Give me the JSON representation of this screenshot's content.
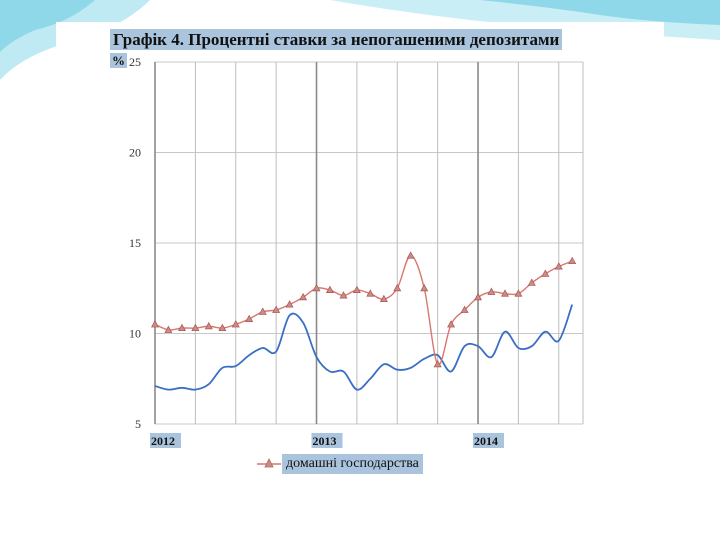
{
  "slide": {
    "accent": "#7fd3e8"
  },
  "chart_data": {
    "type": "line",
    "title": "Графік 4. Процентні ставки за непогашеними депозитами",
    "ylabel": "%",
    "ylim": [
      5,
      25
    ],
    "yticks": [
      "25",
      "20",
      "15",
      "10",
      "5"
    ],
    "xlim": [
      2012.0,
      2014.65
    ],
    "xticks": [
      {
        "value": 2012,
        "label": "2012"
      },
      {
        "value": 2013,
        "label": "2013"
      },
      {
        "value": 2014,
        "label": "2014"
      }
    ],
    "grid": true,
    "legend": "bottom",
    "series": [
      {
        "name": "домашні господарства",
        "color": "#d9776e",
        "marker": "triangle",
        "points": [
          [
            2012.0,
            10.5
          ],
          [
            2012.083,
            10.2
          ],
          [
            2012.167,
            10.3
          ],
          [
            2012.25,
            10.3
          ],
          [
            2012.333,
            10.4
          ],
          [
            2012.417,
            10.3
          ],
          [
            2012.5,
            10.5
          ],
          [
            2012.583,
            10.8
          ],
          [
            2012.667,
            11.2
          ],
          [
            2012.75,
            11.3
          ],
          [
            2012.833,
            11.6
          ],
          [
            2012.917,
            12.0
          ],
          [
            2013.0,
            12.5
          ],
          [
            2013.083,
            12.4
          ],
          [
            2013.167,
            12.1
          ],
          [
            2013.25,
            12.4
          ],
          [
            2013.333,
            12.2
          ],
          [
            2013.417,
            11.9
          ],
          [
            2013.5,
            12.5
          ],
          [
            2013.583,
            14.3
          ],
          [
            2013.667,
            12.5
          ],
          [
            2013.75,
            8.3
          ],
          [
            2013.833,
            10.5
          ],
          [
            2013.917,
            11.3
          ],
          [
            2014.0,
            12.0
          ],
          [
            2014.083,
            12.3
          ],
          [
            2014.167,
            12.2
          ],
          [
            2014.25,
            12.2
          ],
          [
            2014.333,
            12.8
          ],
          [
            2014.417,
            13.3
          ],
          [
            2014.5,
            13.7
          ],
          [
            2014.583,
            14.0
          ]
        ]
      },
      {
        "name": "",
        "color": "#3a6fc4",
        "marker": "none",
        "points": [
          [
            2012.0,
            7.1
          ],
          [
            2012.083,
            6.9
          ],
          [
            2012.167,
            7.0
          ],
          [
            2012.25,
            6.9
          ],
          [
            2012.333,
            7.2
          ],
          [
            2012.417,
            8.1
          ],
          [
            2012.5,
            8.2
          ],
          [
            2012.583,
            8.8
          ],
          [
            2012.667,
            9.2
          ],
          [
            2012.75,
            9.0
          ],
          [
            2012.833,
            11.0
          ],
          [
            2012.917,
            10.6
          ],
          [
            2013.0,
            8.7
          ],
          [
            2013.083,
            7.9
          ],
          [
            2013.167,
            7.9
          ],
          [
            2013.25,
            6.9
          ],
          [
            2013.333,
            7.5
          ],
          [
            2013.417,
            8.3
          ],
          [
            2013.5,
            8.0
          ],
          [
            2013.583,
            8.1
          ],
          [
            2013.667,
            8.6
          ],
          [
            2013.75,
            8.8
          ],
          [
            2013.833,
            7.9
          ],
          [
            2013.917,
            9.3
          ],
          [
            2014.0,
            9.3
          ],
          [
            2014.083,
            8.7
          ],
          [
            2014.167,
            10.1
          ],
          [
            2014.25,
            9.2
          ],
          [
            2014.333,
            9.3
          ],
          [
            2014.417,
            10.1
          ],
          [
            2014.5,
            9.6
          ],
          [
            2014.583,
            11.6
          ]
        ]
      }
    ]
  }
}
